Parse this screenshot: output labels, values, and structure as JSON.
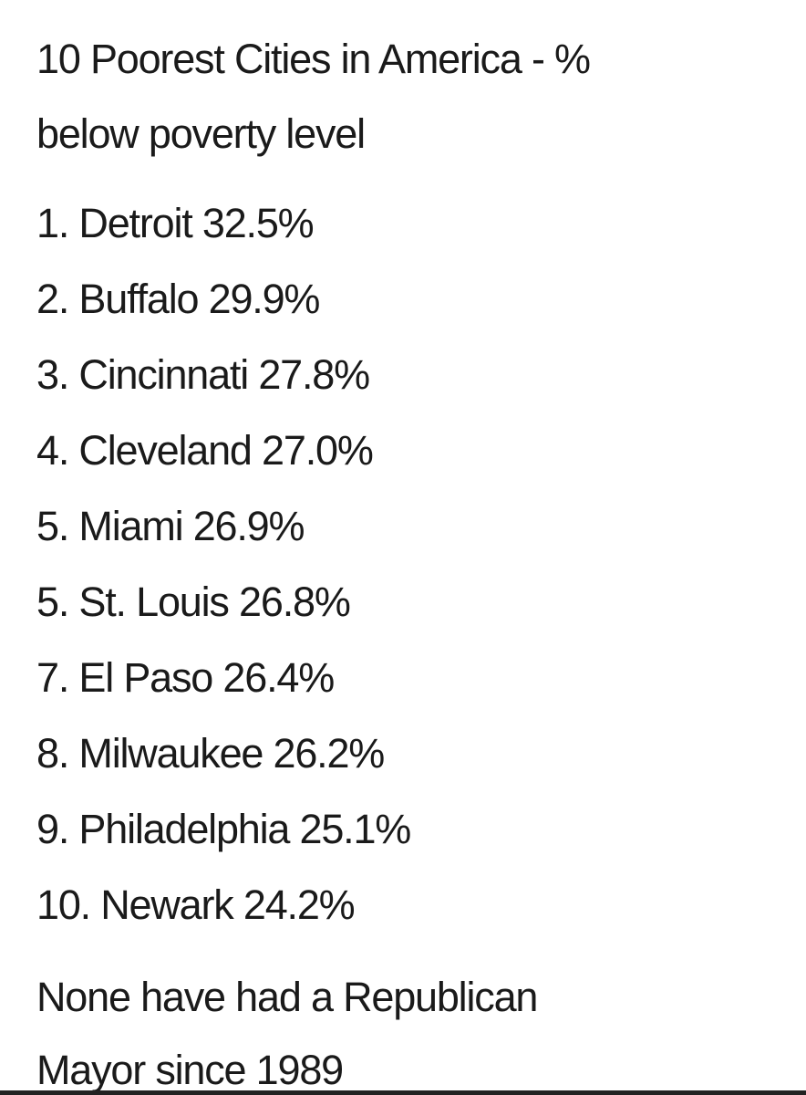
{
  "header": {
    "title_lines": [
      "10 Poorest Cities in America - %",
      "below poverty level"
    ]
  },
  "list": {
    "items": [
      "1. Detroit 32.5%",
      "2. Buffalo 29.9%",
      "3. Cincinnati 27.8%",
      "4. Cleveland 27.0%",
      "5. Miami 26.9%",
      "5. St. Louis 26.8%",
      "7. El Paso 26.4%",
      "8. Milwaukee 26.2%",
      "9. Philadelphia 25.1%",
      "10. Newark 24.2%"
    ]
  },
  "footer": {
    "lines": [
      "None have had a Republican",
      "Mayor since 1989"
    ]
  }
}
